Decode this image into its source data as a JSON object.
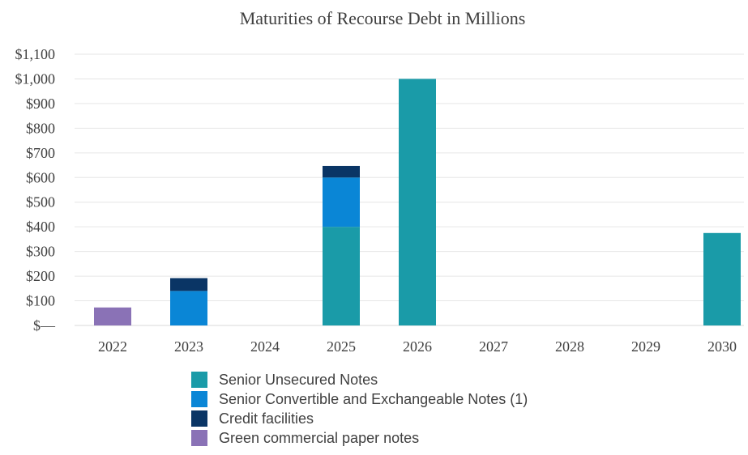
{
  "chart_data": {
    "type": "bar",
    "stacked": true,
    "title": "Maturities of Recourse Debt in Millions",
    "xlabel": "",
    "ylabel": "",
    "categories": [
      "2022",
      "2023",
      "2024",
      "2025",
      "2026",
      "2027",
      "2028",
      "2029",
      "2030"
    ],
    "y_tick_labels": [
      "$—",
      "$100",
      "$200",
      "$300",
      "$400",
      "$500",
      "$600",
      "$700",
      "$800",
      "$900",
      "$1,000",
      "$1,100"
    ],
    "ylim": [
      0,
      1100
    ],
    "grid": true,
    "legend_position": "bottom",
    "series": [
      {
        "name": "Senior Unsecured Notes",
        "color": "#1a9ba8",
        "values": [
          0,
          0,
          0,
          400,
          1000,
          0,
          0,
          0,
          375
        ]
      },
      {
        "name": "Senior Convertible and Exchangeable Notes (1)",
        "color": "#0a86d6",
        "values": [
          0,
          140,
          0,
          200,
          0,
          0,
          0,
          0,
          0
        ]
      },
      {
        "name": "Credit facilities",
        "color": "#0a3565",
        "values": [
          0,
          52,
          0,
          47,
          0,
          0,
          0,
          0,
          0
        ]
      },
      {
        "name": "Green commercial paper notes",
        "color": "#8a72b6",
        "values": [
          73,
          0,
          0,
          0,
          0,
          0,
          0,
          0,
          0
        ]
      }
    ]
  }
}
